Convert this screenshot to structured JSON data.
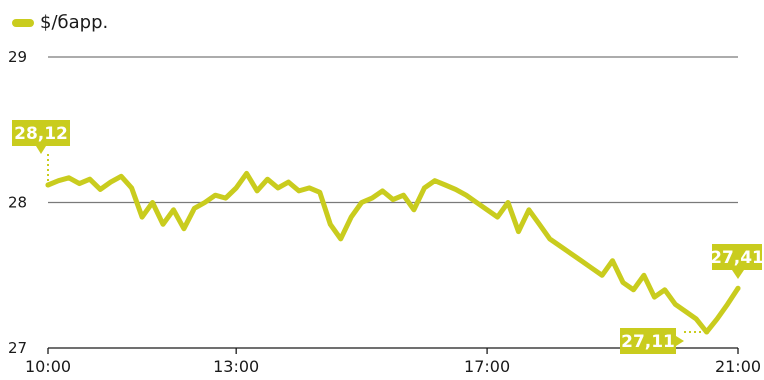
{
  "colors": {
    "accent": "#c9cc1e",
    "axis": "#1a1a1a",
    "grid": "#7a7a7a"
  },
  "chart_data": {
    "type": "line",
    "legend": "$/барр.",
    "legend_position": "top-left",
    "grid": true,
    "ylim": [
      27,
      29
    ],
    "yticks": [
      "27",
      "28",
      "29"
    ],
    "xlim": [
      "10:00",
      "21:00"
    ],
    "xticks": [
      "10:00",
      "13:00",
      "17:00",
      "21:00"
    ],
    "series": [
      {
        "name": "$/барр.",
        "x": [
          "10:00",
          "10:10",
          "10:20",
          "10:30",
          "10:40",
          "10:50",
          "11:00",
          "11:10",
          "11:20",
          "11:30",
          "11:40",
          "11:50",
          "12:00",
          "12:10",
          "12:20",
          "12:30",
          "12:40",
          "12:50",
          "13:00",
          "13:10",
          "13:20",
          "13:30",
          "13:40",
          "13:50",
          "14:00",
          "14:10",
          "14:20",
          "14:30",
          "14:40",
          "14:50",
          "15:00",
          "15:10",
          "15:20",
          "15:30",
          "15:40",
          "15:50",
          "16:00",
          "16:10",
          "16:20",
          "16:30",
          "16:40",
          "16:50",
          "17:00",
          "17:10",
          "17:20",
          "17:30",
          "17:40",
          "17:50",
          "18:00",
          "18:10",
          "18:20",
          "18:30",
          "18:40",
          "18:50",
          "19:00",
          "19:10",
          "19:20",
          "19:30",
          "19:40",
          "19:50",
          "20:00",
          "20:10",
          "20:20",
          "20:30",
          "20:40",
          "20:50",
          "21:00"
        ],
        "values": [
          28.12,
          28.15,
          28.17,
          28.13,
          28.16,
          28.09,
          28.14,
          28.18,
          28.1,
          27.9,
          28.0,
          27.85,
          27.95,
          27.82,
          27.96,
          28.0,
          28.05,
          28.03,
          28.1,
          28.2,
          28.08,
          28.16,
          28.1,
          28.14,
          28.08,
          28.1,
          28.07,
          27.85,
          27.75,
          27.9,
          28.0,
          28.03,
          28.08,
          28.02,
          28.05,
          27.95,
          28.1,
          28.15,
          28.12,
          28.09,
          28.05,
          28.0,
          27.95,
          27.9,
          28.0,
          27.8,
          27.95,
          27.85,
          27.75,
          27.7,
          27.65,
          27.6,
          27.55,
          27.5,
          27.6,
          27.45,
          27.4,
          27.5,
          27.35,
          27.4,
          27.3,
          27.25,
          27.2,
          27.11,
          27.2,
          27.3,
          27.41
        ]
      }
    ],
    "annotations": [
      {
        "label": "28,12",
        "x": "10:00",
        "value": 28.12
      },
      {
        "label": "27,11",
        "x": "20:30",
        "value": 27.11
      },
      {
        "label": "27,41",
        "x": "21:00",
        "value": 27.41
      }
    ]
  }
}
